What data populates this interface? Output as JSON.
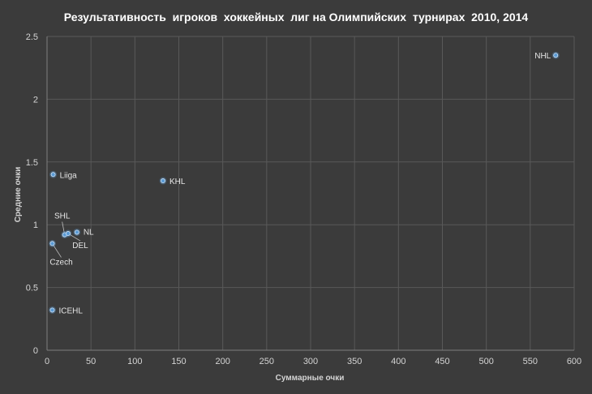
{
  "chart_data": {
    "type": "scatter",
    "title": "Результативность  игроков  хоккейных  лиг на Олимпийских  турнирах  2010, 2014",
    "xlabel": "Суммарные очки",
    "ylabel": "Средние очки",
    "xlim": [
      0,
      600
    ],
    "ylim": [
      0,
      2.5
    ],
    "xticks": [
      0,
      50,
      100,
      150,
      200,
      250,
      300,
      350,
      400,
      450,
      500,
      550,
      600
    ],
    "yticks": [
      0,
      0.5,
      1,
      1.5,
      2,
      2.5
    ],
    "ytick_labels": [
      "0",
      "0.5",
      "1",
      "1.5",
      "2",
      "2.5"
    ],
    "grid": true,
    "marker_color": "#5b9bd5",
    "background_color": "#3b3b3b",
    "points": [
      {
        "label": "NHL",
        "x": 579,
        "y": 2.35
      },
      {
        "label": "Liiga",
        "x": 7,
        "y": 1.4
      },
      {
        "label": "KHL",
        "x": 132,
        "y": 1.35
      },
      {
        "label": "SHL",
        "x": 20,
        "y": 0.92
      },
      {
        "label": "DEL",
        "x": 24,
        "y": 0.93
      },
      {
        "label": "NL",
        "x": 34,
        "y": 0.94
      },
      {
        "label": "Czech",
        "x": 6,
        "y": 0.85
      },
      {
        "label": "ICEHL",
        "x": 6,
        "y": 0.32
      }
    ]
  }
}
